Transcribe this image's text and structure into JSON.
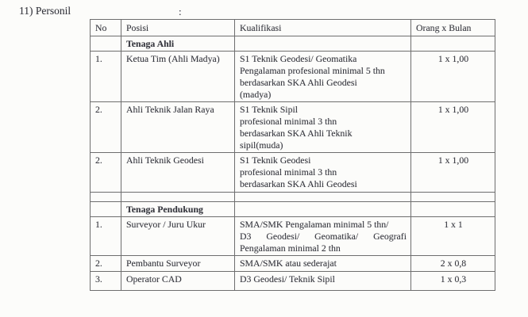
{
  "document": {
    "heading": "11) Personil",
    "separator": ":"
  },
  "colors": {
    "text": "#34353d",
    "border": "#6e6e6e",
    "background": "#fcfcfa"
  },
  "table": {
    "headers": [
      "No",
      "Posisi",
      "Kualifikasi",
      "Orang x Bulan"
    ],
    "rows": [
      {
        "type": "section",
        "label": "Tenaga Ahli"
      },
      {
        "type": "data",
        "no": "1.",
        "posisi": "Ketua Tim (Ahli Madya)",
        "kualifikasi": [
          "S1 Teknik Geodesi/ Geomatika",
          "Pengalaman profesional minimal 5 thn",
          "berdasarkan SKA Ahli Geodesi",
          "(madya)"
        ],
        "orang_x_bulan": "1 x 1,00"
      },
      {
        "type": "data",
        "no": "2.",
        "posisi": "Ahli Teknik Jalan Raya",
        "kualifikasi": [
          "S1 Teknik Sipil",
          "profesional minimal 3 thn",
          "berdasarkan SKA Ahli Teknik",
          "sipil(muda)"
        ],
        "orang_x_bulan": "1 x 1,00"
      },
      {
        "type": "data",
        "no": "2.",
        "posisi": "Ahli Teknik Geodesi",
        "kualifikasi": [
          "S1 Teknik Geodesi",
          "profesional minimal 3 thn",
          "berdasarkan SKA Ahli Geodesi"
        ],
        "orang_x_bulan": "1 x 1,00"
      },
      {
        "type": "empty"
      },
      {
        "type": "section",
        "label": "Tenaga Pendukung"
      },
      {
        "type": "data",
        "no": "1.",
        "posisi": "Surveyor / Juru Ukur",
        "kualifikasi": [
          "SMA/SMK Pengalaman minimal 5 thn/",
          "D3 Geodesi/ Geomatika/ Geografi",
          "Pengalaman minimal 2 thn"
        ],
        "justify_lines": [
          1
        ],
        "orang_x_bulan": "1 x 1"
      },
      {
        "type": "data",
        "no": "2.",
        "posisi": "Pembantu Surveyor",
        "kualifikasi": [
          "SMA/SMK atau sederajat"
        ],
        "orang_x_bulan": "2 x 0,8"
      },
      {
        "type": "data",
        "no": "3.",
        "posisi": "Operator CAD",
        "kualifikasi": [
          "D3 Geodesi/ Teknik Sipil"
        ],
        "orang_x_bulan": "1 x 0,3"
      }
    ]
  }
}
